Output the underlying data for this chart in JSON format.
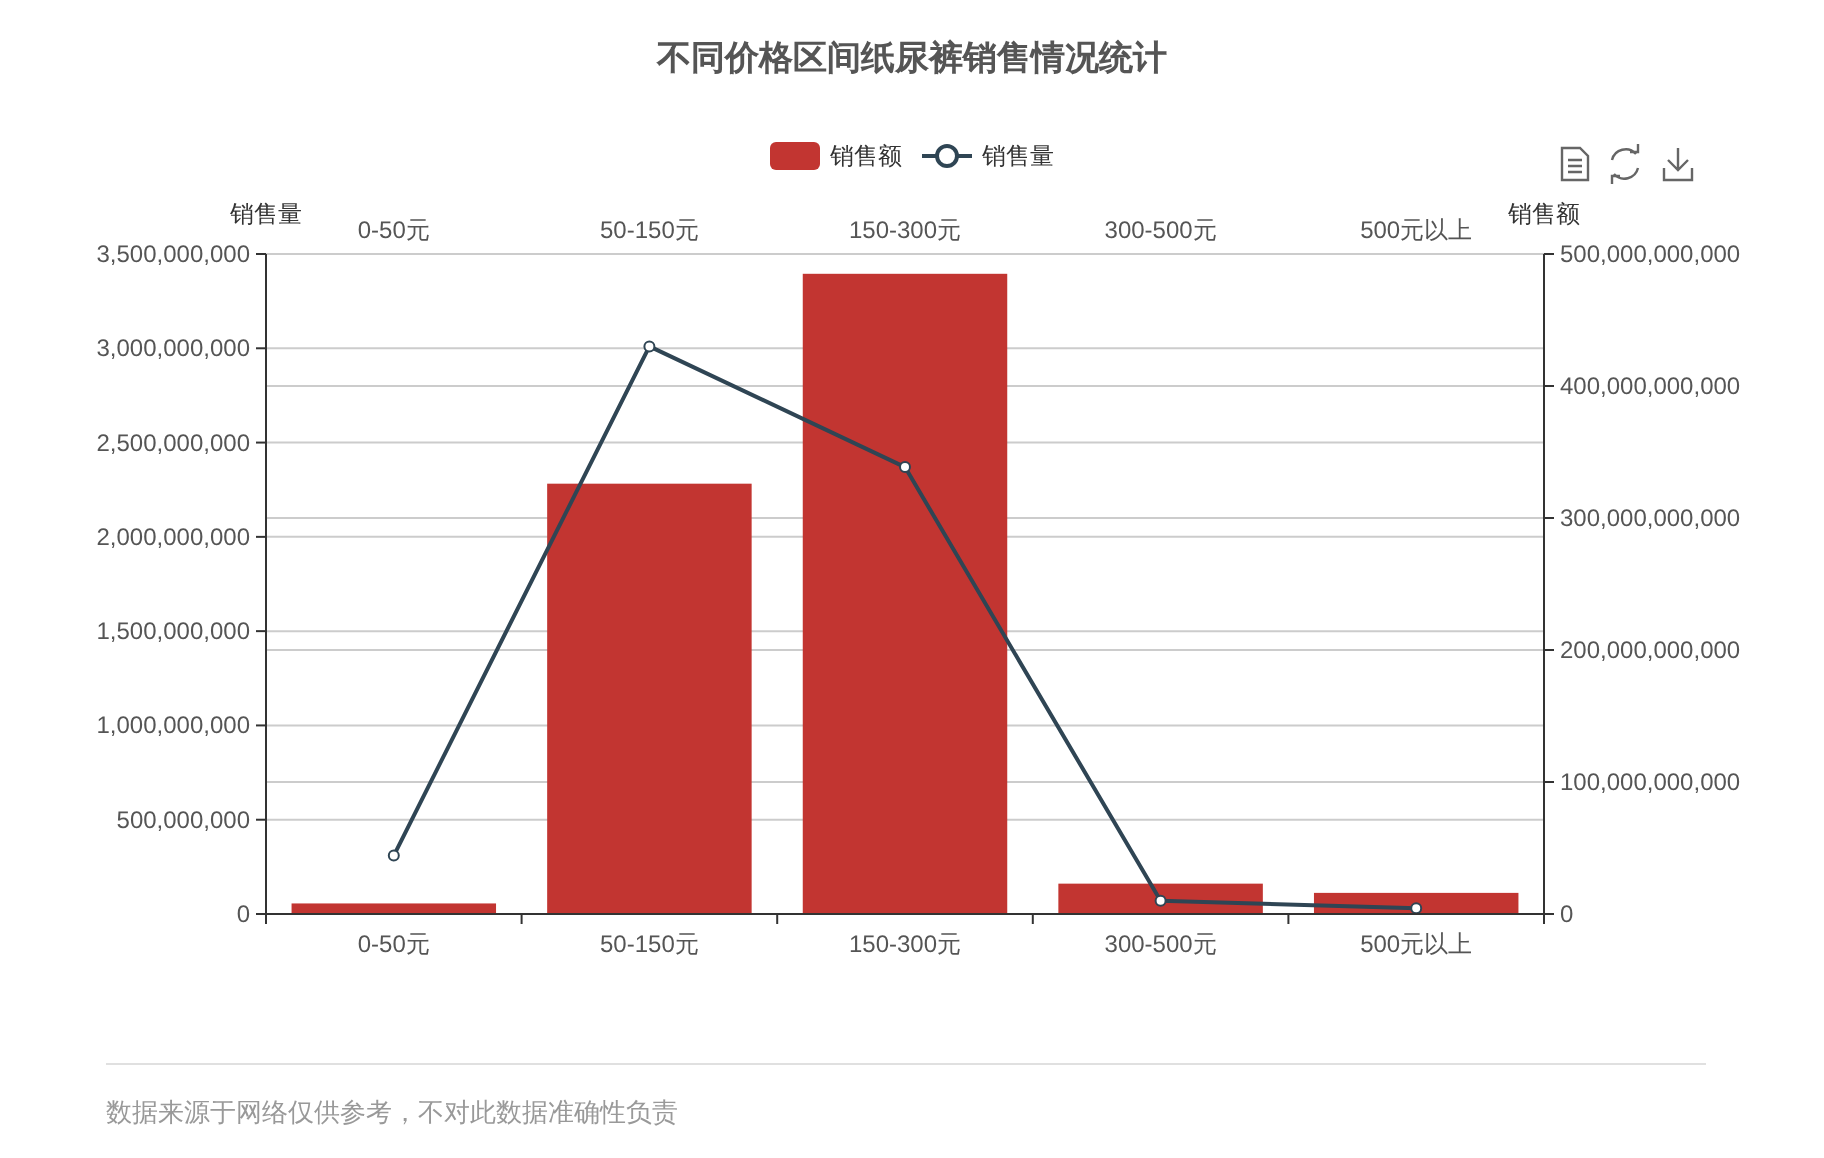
{
  "chart_data": {
    "type": "bar",
    "title": "不同价格区间纸尿裤销售情况统计",
    "categories": [
      "0-50元",
      "50-150元",
      "150-300元",
      "300-500元",
      "500元以上"
    ],
    "series": [
      {
        "name": "销售额",
        "axis": "y2",
        "color": "#c23531",
        "values": [
          8000000000,
          326000000000,
          485000000000,
          23000000000,
          16000000000
        ]
      },
      {
        "name": "销售量",
        "type": "line",
        "color": "#2f4554",
        "values": [
          310000000,
          3010000000,
          2370000000,
          70000000,
          30000000
        ]
      }
    ],
    "ylabel": "销售量",
    "y2label": "销售额",
    "ylim": [
      0,
      3500000000
    ],
    "yticks": [
      0,
      {
        "value": 500000000,
        "label": "500,000,000"
      },
      {
        "value": 1000000000,
        "label": "1,000,000,000"
      },
      {
        "value": 1500000000,
        "label": "1,500,000,000"
      },
      {
        "value": 2000000000,
        "label": "2,000,000,000"
      },
      {
        "value": 2500000000,
        "label": "2,500,000,000"
      },
      {
        "value": 3000000000,
        "label": "3,000,000,000"
      },
      {
        "value": 3500000000,
        "label": "3,500,000,000"
      }
    ],
    "y2lim": [
      0,
      500000000000
    ],
    "y2ticks": [
      0,
      {
        "value": 100000000000,
        "label": "100,000,000,000"
      },
      {
        "value": 200000000000,
        "label": "200,000,000,000"
      },
      {
        "value": 300000000000,
        "label": "300,000,000,000"
      },
      {
        "value": 400000000000,
        "label": "400,000,000,000"
      },
      {
        "value": 500000000000,
        "label": "500,000,000,000"
      }
    ],
    "grid": "y",
    "legend": "top",
    "marker": "circle",
    "annotations": [
      "数据来源于网络仅供参考，不对此数据准确性负责"
    ]
  }
}
